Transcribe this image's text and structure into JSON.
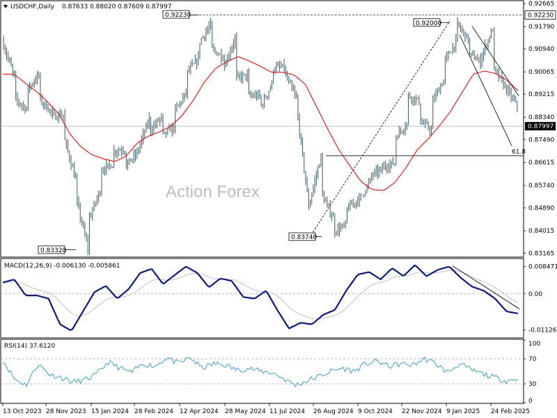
{
  "header": {
    "symbol": "USDCHF,Daily",
    "ohlc": "0.87633 0.88020 0.87609 0.87997"
  },
  "watermark": "Action Forex",
  "colors": {
    "bars": "#36585f",
    "ma": "#e01010",
    "macd": "#0a1a80",
    "signal": "#c0c0c0",
    "rsi": "#3a9ec0",
    "price_tag_bg": "#000000"
  },
  "chart_data": [
    {
      "type": "ohlc",
      "title": "USDCHF,Daily",
      "x_tick_labels": [
        "13 Oct 2023",
        "28 Nov 2023",
        "15 Jan 2024",
        "28 Feb 2024",
        "12 Apr 2024",
        "28 May 2024",
        "11 Jul 2024",
        "26 Aug 2024",
        "9 Oct 2024",
        "22 Nov 2024",
        "9 Jan 2025",
        "24 Feb 2025"
      ],
      "y_tick_labels": [
        "0.92665",
        "0.91790",
        "0.90940",
        "0.90065",
        "0.89215",
        "0.88340",
        "0.87490",
        "0.86615",
        "0.85740",
        "0.84890",
        "0.84015",
        "0.83165"
      ],
      "ylim": [
        0.8304,
        0.9275
      ],
      "current_price": "0.87997",
      "annotations": [
        {
          "label": "0.92230",
          "value": 0.9223,
          "type": "high"
        },
        {
          "label": "0.83320",
          "value": 0.8332,
          "type": "low"
        },
        {
          "label": "0.83740",
          "value": 0.8374,
          "type": "low"
        },
        {
          "label": "0.92000",
          "value": 0.92,
          "type": "high"
        },
        {
          "label": "61.8",
          "value": 0.8687,
          "type": "fibonacci"
        }
      ],
      "price_path": [
        [
          0.9125,
          0.8988
        ],
        [
          0.8905,
          0.8866
        ],
        [
          0.8935,
          0.8995
        ],
        [
          0.8905,
          0.8855
        ],
        [
          0.8835,
          0.8845
        ],
        [
          0.8766,
          0.8595
        ],
        [
          0.853,
          0.8335
        ],
        [
          0.8435,
          0.8555
        ],
        [
          0.8632,
          0.8655
        ],
        [
          0.8705,
          0.8712
        ],
        [
          0.8645,
          0.8695
        ],
        [
          0.87,
          0.8825
        ],
        [
          0.878,
          0.8835
        ],
        [
          0.876,
          0.8795
        ],
        [
          0.885,
          0.8925
        ],
        [
          0.8998,
          0.9055
        ],
        [
          0.9115,
          0.9185
        ],
        [
          0.9095,
          0.9065
        ],
        [
          0.9015,
          0.9135
        ],
        [
          0.898,
          0.8995
        ],
        [
          0.8915,
          0.8915
        ],
        [
          0.8865,
          0.896
        ],
        [
          0.902,
          0.9025
        ],
        [
          0.9,
          0.8905
        ],
        [
          0.8875,
          0.8495
        ],
        [
          0.8495,
          0.8685
        ],
        [
          0.8545,
          0.845
        ],
        [
          0.84,
          0.842
        ],
        [
          0.848,
          0.852
        ],
        [
          0.851,
          0.859
        ],
        [
          0.861,
          0.8635
        ],
        [
          0.8645,
          0.866
        ],
        [
          0.8755,
          0.881
        ],
        [
          0.892,
          0.8895
        ],
        [
          0.882,
          0.8785
        ],
        [
          0.8885,
          0.8975
        ],
        [
          0.904,
          0.912
        ],
        [
          0.9195,
          0.913
        ],
        [
          0.908,
          0.9042
        ],
        [
          0.906,
          0.917
        ],
        [
          0.9025,
          0.895
        ],
        [
          0.895,
          0.8875
        ],
        [
          0.876,
          0.88
        ]
      ],
      "moving_average": [
        0.8998,
        0.8998,
        0.8964,
        0.8932,
        0.8892,
        0.8846,
        0.877,
        0.872,
        0.869,
        0.8675,
        0.8665,
        0.8685,
        0.8735,
        0.8762,
        0.8778,
        0.88,
        0.884,
        0.8898,
        0.8968,
        0.902,
        0.9045,
        0.9065,
        0.9048,
        0.9028,
        0.9005,
        0.9005,
        0.8995,
        0.896,
        0.8875,
        0.879,
        0.871,
        0.8648,
        0.8588,
        0.8558,
        0.8555,
        0.8585,
        0.8642,
        0.871,
        0.8752,
        0.8802,
        0.8858,
        0.8928,
        0.8998,
        0.901,
        0.9,
        0.8975,
        0.8935
      ]
    },
    {
      "type": "line",
      "title": "MACD(12,26,9) -0.006130 -0.005861",
      "y_tick_labels": [
        "0.008471",
        "0.00",
        "-0.011265"
      ],
      "ylim": [
        -0.0135,
        0.0108
      ],
      "series": [
        {
          "name": "MACD",
          "values": [
            0.0035,
            0.0045,
            -0.0005,
            -0.0005,
            -0.0015,
            -0.0095,
            -0.0115,
            -0.0055,
            0.0005,
            0.0025,
            -0.0015,
            0.0015,
            0.0065,
            0.0078,
            0.003,
            0.0058,
            0.0085,
            0.0065,
            0.002,
            0.0048,
            0.004,
            -0.001,
            -0.0015,
            0.001,
            -0.0052,
            -0.0108,
            -0.009,
            -0.0095,
            -0.0065,
            -0.005,
            0.001,
            0.006,
            0.0068,
            0.0045,
            0.008,
            0.0055,
            0.009,
            0.0055,
            0.0075,
            0.0085,
            0.005,
            0.0022,
            0.001,
            -0.0015,
            -0.0055,
            -0.0061
          ]
        }
      ]
    },
    {
      "type": "line",
      "title": "RSI(14) 37.6120",
      "y_tick_labels": [
        "100",
        "70",
        "30",
        "0"
      ],
      "ylim": [
        0,
        100
      ],
      "levels": [
        70,
        30
      ],
      "series": [
        {
          "name": "RSI",
          "values": [
            68,
            38,
            28,
            62,
            45,
            40,
            33,
            36,
            45,
            65,
            55,
            48,
            62,
            58,
            72,
            62,
            72,
            55,
            62,
            60,
            52,
            55,
            50,
            48,
            38,
            28,
            35,
            42,
            50,
            55,
            50,
            62,
            66,
            58,
            62,
            60,
            70,
            62,
            48,
            62,
            52,
            46,
            40,
            35,
            37.6
          ]
        }
      ]
    }
  ]
}
